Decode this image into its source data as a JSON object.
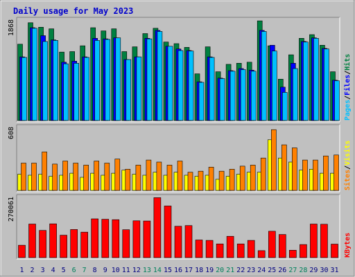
{
  "title": "Daily usage for May 2023",
  "colors": {
    "background": "#c0c0c0",
    "plot": "#c0c0c0",
    "title": "#0000cc",
    "hits": "#008040",
    "files": "#0000ff",
    "pages": "#00c0ff",
    "visits": "#ffff00",
    "sites": "#ff8000",
    "kbytes": "#ff0000",
    "weekday_label": "#000080",
    "weekend_label": "#00805c"
  },
  "chart_data": [
    {
      "type": "bar",
      "panel": "hits-files-pages",
      "x": [
        1,
        2,
        3,
        4,
        5,
        6,
        7,
        8,
        9,
        10,
        11,
        12,
        13,
        14,
        15,
        16,
        17,
        18,
        19,
        20,
        21,
        22,
        23,
        24,
        25,
        26,
        27,
        28,
        29,
        30,
        31
      ],
      "weekend_days": [
        6,
        7,
        13,
        14,
        20,
        21,
        27,
        28
      ],
      "ymax_label": "1868",
      "ymax": 1868,
      "legend": [
        "Pages",
        "Files",
        "Hits"
      ],
      "series": [
        {
          "name": "Hits",
          "values": [
            1440,
            1845,
            1760,
            1730,
            1290,
            1300,
            1410,
            1750,
            1690,
            1730,
            1300,
            1390,
            1640,
            1740,
            1480,
            1450,
            1380,
            880,
            1390,
            920,
            1060,
            1080,
            1100,
            1880,
            1410,
            780,
            1240,
            1550,
            1620,
            1420,
            920
          ]
        },
        {
          "name": "Files",
          "values": [
            1200,
            1750,
            1600,
            1520,
            1100,
            1120,
            1200,
            1550,
            1540,
            1560,
            1150,
            1200,
            1550,
            1700,
            1400,
            1350,
            1320,
            730,
            1200,
            800,
            940,
            980,
            950,
            1700,
            1420,
            630,
            1080,
            1490,
            1560,
            1360,
            760
          ]
        },
        {
          "name": "Pages",
          "values": [
            1190,
            1740,
            1490,
            1510,
            1070,
            1080,
            1190,
            1510,
            1530,
            1560,
            1150,
            1200,
            1540,
            1680,
            1400,
            1320,
            1310,
            720,
            1190,
            790,
            930,
            960,
            930,
            1680,
            1310,
            530,
            980,
            1480,
            1550,
            1350,
            750
          ]
        }
      ]
    },
    {
      "type": "bar",
      "panel": "visits-sites",
      "x": [
        1,
        2,
        3,
        4,
        5,
        6,
        7,
        8,
        9,
        10,
        11,
        12,
        13,
        14,
        15,
        16,
        17,
        18,
        19,
        20,
        21,
        22,
        23,
        24,
        25,
        26,
        27,
        28,
        29,
        30,
        31
      ],
      "ymax_label": "608",
      "ymax": 608,
      "legend": [
        "Sites",
        "Visits"
      ],
      "series": [
        {
          "name": "Visits",
          "values": [
            160,
            150,
            160,
            140,
            150,
            170,
            130,
            170,
            150,
            170,
            200,
            160,
            150,
            180,
            150,
            180,
            150,
            140,
            150,
            110,
            140,
            160,
            180,
            180,
            500,
            320,
            280,
            200,
            210,
            170,
            170
          ]
        },
        {
          "name": "Sites",
          "values": [
            270,
            270,
            380,
            260,
            290,
            270,
            250,
            290,
            270,
            310,
            210,
            250,
            300,
            280,
            250,
            290,
            180,
            190,
            230,
            190,
            210,
            240,
            250,
            320,
            600,
            450,
            420,
            300,
            300,
            340,
            350
          ]
        }
      ]
    },
    {
      "type": "bar",
      "panel": "kbytes",
      "x": [
        1,
        2,
        3,
        4,
        5,
        6,
        7,
        8,
        9,
        10,
        11,
        12,
        13,
        14,
        15,
        16,
        17,
        18,
        19,
        20,
        21,
        22,
        23,
        24,
        25,
        26,
        27,
        28,
        29,
        30,
        31
      ],
      "ymax_label": "270061",
      "ymax": 270061,
      "legend": [
        "KBytes"
      ],
      "series": [
        {
          "name": "KBytes",
          "values": [
            57000,
            154000,
            125000,
            155000,
            103000,
            129000,
            117000,
            178000,
            176000,
            174000,
            128000,
            169000,
            168000,
            275000,
            237000,
            144000,
            147000,
            81000,
            79000,
            63000,
            98000,
            63000,
            79000,
            32000,
            121000,
            106000,
            34000,
            60000,
            154000,
            153000,
            62000
          ]
        }
      ]
    }
  ]
}
